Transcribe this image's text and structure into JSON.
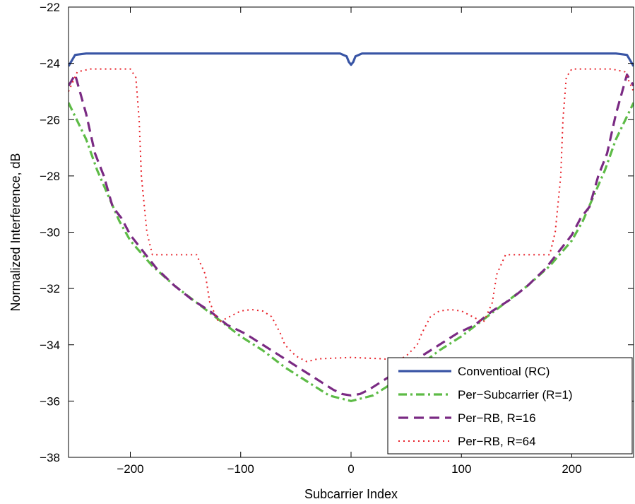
{
  "chart_data": {
    "type": "line",
    "title": "",
    "xlabel": "Subcarrier Index",
    "ylabel": "Normalized Interference, dB",
    "xlim": [
      -256,
      256
    ],
    "ylim": [
      -38,
      -22
    ],
    "xticks": [
      -200,
      -100,
      0,
      100,
      200
    ],
    "yticks": [
      -38,
      -36,
      -34,
      -32,
      -30,
      -28,
      -26,
      -24,
      -22
    ],
    "xtick_labels": [
      "−200",
      "−100",
      "0",
      "100",
      "200"
    ],
    "ytick_labels": [
      "−38",
      "−36",
      "−34",
      "−32",
      "−30",
      "−28",
      "−26",
      "−24",
      "−22"
    ],
    "grid": false,
    "legend_position": "bottom-right",
    "series": [
      {
        "name": "Conventioal (RC)",
        "color": "#3955a5",
        "style": "solid",
        "x": [
          -256,
          -250,
          -240,
          -200,
          -100,
          -10,
          -4,
          -2,
          0,
          2,
          4,
          10,
          100,
          200,
          240,
          250,
          256
        ],
        "y": [
          -24.1,
          -23.7,
          -23.65,
          -23.65,
          -23.65,
          -23.65,
          -23.75,
          -23.95,
          -24.05,
          -23.95,
          -23.75,
          -23.65,
          -23.65,
          -23.65,
          -23.65,
          -23.7,
          -24.1
        ]
      },
      {
        "name": "Per−Subcarrier (R=1)",
        "color": "#5dbb46",
        "style": "dashdot",
        "x": [
          -256,
          -240,
          -230,
          -220,
          -210,
          -200,
          -180,
          -160,
          -140,
          -120,
          -100,
          -80,
          -60,
          -40,
          -20,
          0,
          20,
          40,
          60,
          80,
          100,
          120,
          140,
          160,
          180,
          200,
          210,
          220,
          230,
          240,
          256
        ],
        "y": [
          -25.4,
          -26.7,
          -27.8,
          -28.7,
          -29.6,
          -30.3,
          -31.2,
          -31.9,
          -32.5,
          -33.1,
          -33.7,
          -34.2,
          -34.8,
          -35.3,
          -35.8,
          -36.0,
          -35.8,
          -35.3,
          -34.8,
          -34.2,
          -33.7,
          -33.1,
          -32.5,
          -31.9,
          -31.2,
          -30.3,
          -29.6,
          -28.7,
          -27.8,
          -26.7,
          -25.4
        ]
      },
      {
        "name": "Per−RB, R=16",
        "color": "#7a2a83",
        "style": "dashed",
        "x": [
          -256,
          -250,
          -240,
          -232,
          -224,
          -216,
          -208,
          -200,
          -190,
          -176,
          -160,
          -144,
          -128,
          -112,
          -96,
          -80,
          -64,
          -48,
          -32,
          -16,
          -8,
          0,
          8,
          16,
          32,
          48,
          64,
          80,
          96,
          112,
          128,
          144,
          160,
          176,
          190,
          200,
          208,
          216,
          224,
          232,
          240,
          250,
          256
        ],
        "y": [
          -24.8,
          -24.4,
          -25.8,
          -27.2,
          -28.0,
          -29.1,
          -29.5,
          -30.1,
          -30.6,
          -31.3,
          -31.9,
          -32.4,
          -32.8,
          -33.3,
          -33.6,
          -34.0,
          -34.4,
          -34.8,
          -35.2,
          -35.6,
          -35.75,
          -35.8,
          -35.75,
          -35.6,
          -35.2,
          -34.8,
          -34.4,
          -34.0,
          -33.6,
          -33.3,
          -32.8,
          -32.4,
          -31.9,
          -31.3,
          -30.6,
          -30.1,
          -29.5,
          -29.1,
          -28.0,
          -27.2,
          -25.8,
          -24.4,
          -24.8
        ]
      },
      {
        "name": "Per−RB, R=64",
        "color": "#e8222a",
        "style": "dotted",
        "x": [
          -256,
          -248,
          -236,
          -200,
          -195,
          -192,
          -190,
          -185,
          -180,
          -150,
          -140,
          -132,
          -128,
          -120,
          -110,
          -100,
          -90,
          -80,
          -72,
          -64,
          -60,
          -50,
          -40,
          -30,
          0,
          30,
          40,
          50,
          60,
          64,
          72,
          80,
          90,
          100,
          110,
          120,
          128,
          132,
          140,
          150,
          180,
          185,
          190,
          192,
          195,
          200,
          236,
          248,
          256
        ],
        "y": [
          -25.0,
          -24.3,
          -24.2,
          -24.2,
          -24.5,
          -26.0,
          -28.0,
          -30.0,
          -30.8,
          -30.8,
          -30.8,
          -31.5,
          -32.5,
          -33.2,
          -33.0,
          -32.8,
          -32.75,
          -32.8,
          -33.0,
          -33.6,
          -34.0,
          -34.4,
          -34.6,
          -34.5,
          -34.45,
          -34.5,
          -34.6,
          -34.4,
          -34.0,
          -33.6,
          -33.0,
          -32.8,
          -32.75,
          -32.8,
          -33.0,
          -33.2,
          -32.5,
          -31.5,
          -30.8,
          -30.8,
          -30.8,
          -30.0,
          -28.0,
          -26.0,
          -24.5,
          -24.2,
          -24.2,
          -24.3,
          -25.0
        ]
      }
    ]
  }
}
